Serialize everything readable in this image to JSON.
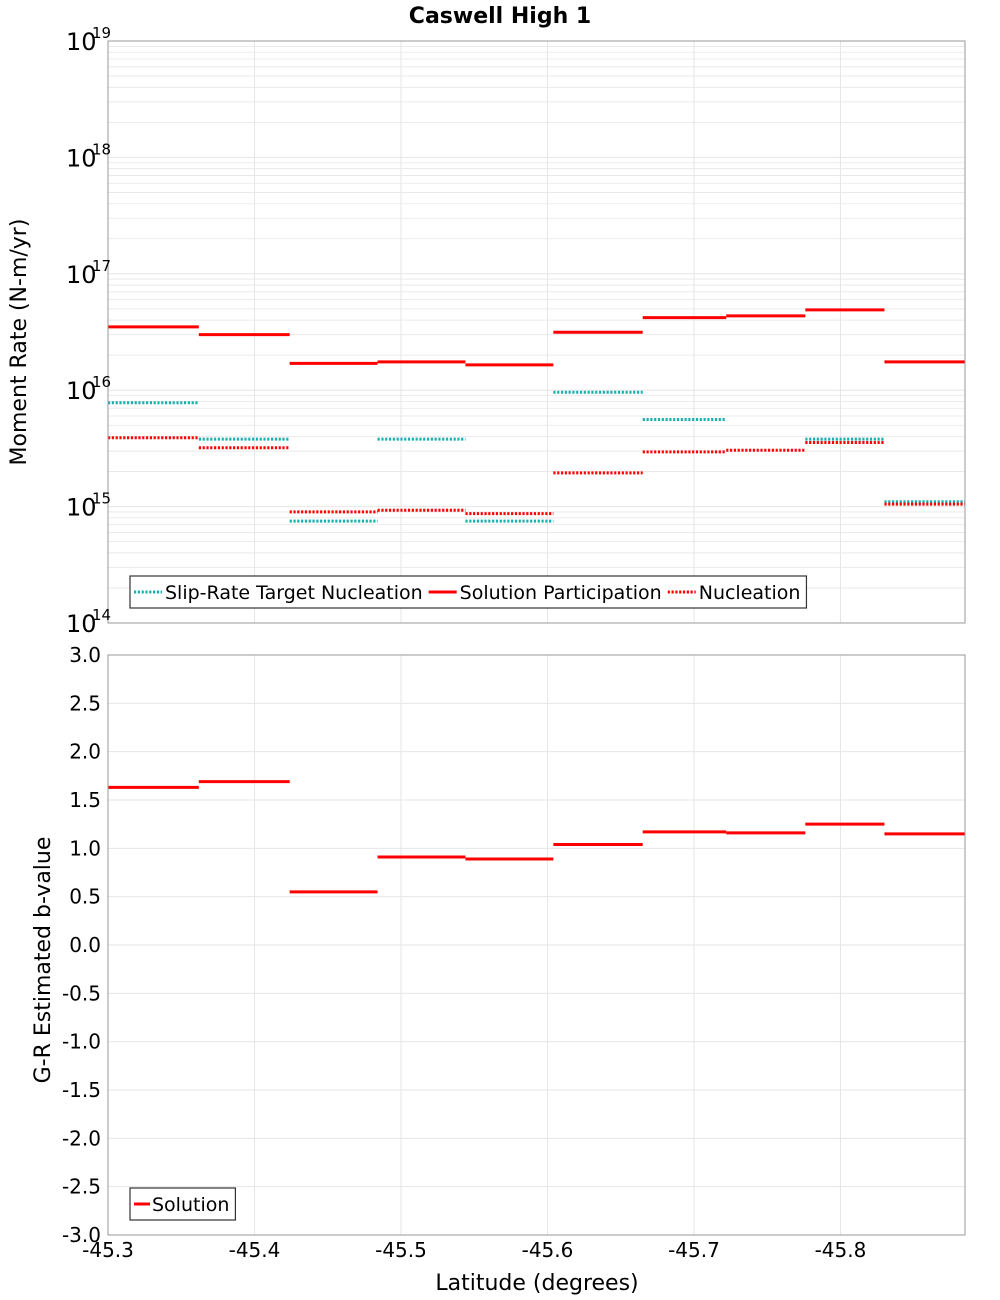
{
  "title": "Caswell High 1",
  "colors": {
    "target": "#1ab0b0",
    "solution": "#ff0000",
    "nucleation": "#ff0000",
    "grid": "#e6e6e6",
    "frame": "#999999"
  },
  "chart_data": [
    {
      "type": "line",
      "subtype": "step",
      "ylabel": "Moment Rate (N-m/yr)",
      "xlabel": "",
      "yscale": "log",
      "ylim": [
        100000000000000.0,
        1e+19
      ],
      "xlim": [
        -45.3,
        -45.885
      ],
      "y_tick_labels": [
        {
          "base": "10",
          "exp": "14"
        },
        {
          "base": "10",
          "exp": "15"
        },
        {
          "base": "10",
          "exp": "16"
        },
        {
          "base": "10",
          "exp": "17"
        },
        {
          "base": "10",
          "exp": "18"
        },
        {
          "base": "10",
          "exp": "19"
        }
      ],
      "legend": {
        "position": "bottom-left",
        "entries": [
          "Slip-Rate Target Nucleation",
          "Solution Participation",
          "Nucleation"
        ]
      },
      "series": [
        {
          "name": "Slip-Rate Target Nucleation",
          "style": "dotted",
          "color_key": "target",
          "segments": [
            {
              "x0": -45.3,
              "x1": -45.362,
              "y": 7800000000000000.0
            },
            {
              "x0": -45.362,
              "x1": -45.424,
              "y": 3800000000000000.0
            },
            {
              "x0": -45.424,
              "x1": -45.484,
              "y": 750000000000000.0
            },
            {
              "x0": -45.484,
              "x1": -45.544,
              "y": 3800000000000000.0
            },
            {
              "x0": -45.544,
              "x1": -45.604,
              "y": 750000000000000.0
            },
            {
              "x0": -45.604,
              "x1": -45.665,
              "y": 9600000000000000.0
            },
            {
              "x0": -45.665,
              "x1": -45.722,
              "y": 5600000000000000.0
            },
            {
              "x0": -45.776,
              "x1": -45.83,
              "y": 3800000000000000.0
            },
            {
              "x0": -45.83,
              "x1": -45.885,
              "y": 1100000000000000.0
            }
          ]
        },
        {
          "name": "Solution Participation",
          "style": "solid",
          "color_key": "solution",
          "segments": [
            {
              "x0": -45.3,
              "x1": -45.362,
              "y": 3.5e+16
            },
            {
              "x0": -45.362,
              "x1": -45.424,
              "y": 3e+16
            },
            {
              "x0": -45.424,
              "x1": -45.484,
              "y": 1.7e+16
            },
            {
              "x0": -45.484,
              "x1": -45.544,
              "y": 1.75e+16
            },
            {
              "x0": -45.544,
              "x1": -45.604,
              "y": 1.65e+16
            },
            {
              "x0": -45.604,
              "x1": -45.665,
              "y": 3.15e+16
            },
            {
              "x0": -45.665,
              "x1": -45.722,
              "y": 4.2e+16
            },
            {
              "x0": -45.722,
              "x1": -45.776,
              "y": 4.35e+16
            },
            {
              "x0": -45.776,
              "x1": -45.83,
              "y": 4.9e+16
            },
            {
              "x0": -45.83,
              "x1": -45.885,
              "y": 1.75e+16
            }
          ]
        },
        {
          "name": "Nucleation",
          "style": "dotted",
          "color_key": "nucleation",
          "segments": [
            {
              "x0": -45.3,
              "x1": -45.362,
              "y": 3900000000000000.0
            },
            {
              "x0": -45.362,
              "x1": -45.424,
              "y": 3200000000000000.0
            },
            {
              "x0": -45.424,
              "x1": -45.484,
              "y": 900000000000000.0
            },
            {
              "x0": -45.484,
              "x1": -45.544,
              "y": 930000000000000.0
            },
            {
              "x0": -45.544,
              "x1": -45.604,
              "y": 870000000000000.0
            },
            {
              "x0": -45.604,
              "x1": -45.665,
              "y": 1950000000000000.0
            },
            {
              "x0": -45.665,
              "x1": -45.722,
              "y": 2950000000000000.0
            },
            {
              "x0": -45.722,
              "x1": -45.776,
              "y": 3050000000000000.0
            },
            {
              "x0": -45.776,
              "x1": -45.83,
              "y": 3550000000000000.0
            },
            {
              "x0": -45.83,
              "x1": -45.885,
              "y": 1050000000000000.0
            }
          ]
        }
      ]
    },
    {
      "type": "line",
      "subtype": "step",
      "ylabel": "G-R Estimated b-value",
      "xlabel": "Latitude (degrees)",
      "yscale": "linear",
      "ylim": [
        -3.0,
        3.0
      ],
      "xlim": [
        -45.3,
        -45.885
      ],
      "y_tick_labels": [
        "-3.0",
        "-2.5",
        "-2.0",
        "-1.5",
        "-1.0",
        "-0.5",
        "0.0",
        "0.5",
        "1.0",
        "1.5",
        "2.0",
        "2.5",
        "3.0"
      ],
      "x_tick_labels": [
        "-45.3",
        "-45.4",
        "-45.5",
        "-45.6",
        "-45.7",
        "-45.8"
      ],
      "legend": {
        "position": "bottom-left",
        "entries": [
          "Solution"
        ]
      },
      "series": [
        {
          "name": "Solution",
          "style": "solid",
          "color_key": "solution",
          "segments": [
            {
              "x0": -45.3,
              "x1": -45.362,
              "y": 1.63
            },
            {
              "x0": -45.362,
              "x1": -45.424,
              "y": 1.69
            },
            {
              "x0": -45.424,
              "x1": -45.484,
              "y": 0.55
            },
            {
              "x0": -45.484,
              "x1": -45.544,
              "y": 0.91
            },
            {
              "x0": -45.544,
              "x1": -45.604,
              "y": 0.89
            },
            {
              "x0": -45.604,
              "x1": -45.665,
              "y": 1.04
            },
            {
              "x0": -45.665,
              "x1": -45.722,
              "y": 1.17
            },
            {
              "x0": -45.722,
              "x1": -45.776,
              "y": 1.16
            },
            {
              "x0": -45.776,
              "x1": -45.83,
              "y": 1.25
            },
            {
              "x0": -45.83,
              "x1": -45.885,
              "y": 1.15
            }
          ]
        }
      ]
    }
  ]
}
